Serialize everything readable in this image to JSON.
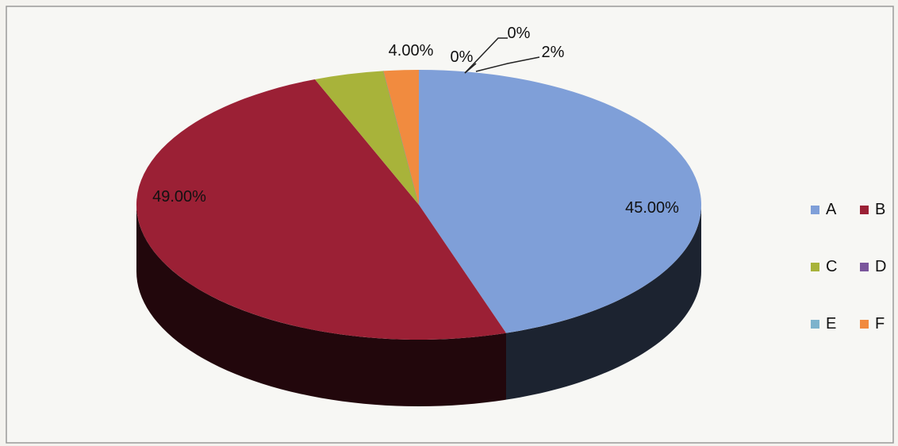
{
  "chart_data": {
    "type": "pie",
    "title": "",
    "three_d": true,
    "legend_position": "right",
    "slices": [
      {
        "label": "A",
        "value": 45.0,
        "display": "45.00%",
        "color": "#7f9fd8"
      },
      {
        "label": "B",
        "value": 49.0,
        "display": "49.00%",
        "color": "#9b2035"
      },
      {
        "label": "C",
        "value": 4.0,
        "display": "4.00%",
        "color": "#a8b33a"
      },
      {
        "label": "D",
        "value": 0.0,
        "display": "0%",
        "color": "#7a569c"
      },
      {
        "label": "E",
        "value": 0.0,
        "display": "0%",
        "color": "#7db3cc"
      },
      {
        "label": "F",
        "value": 2.0,
        "display": "2%",
        "color": "#f18b3f"
      }
    ]
  }
}
